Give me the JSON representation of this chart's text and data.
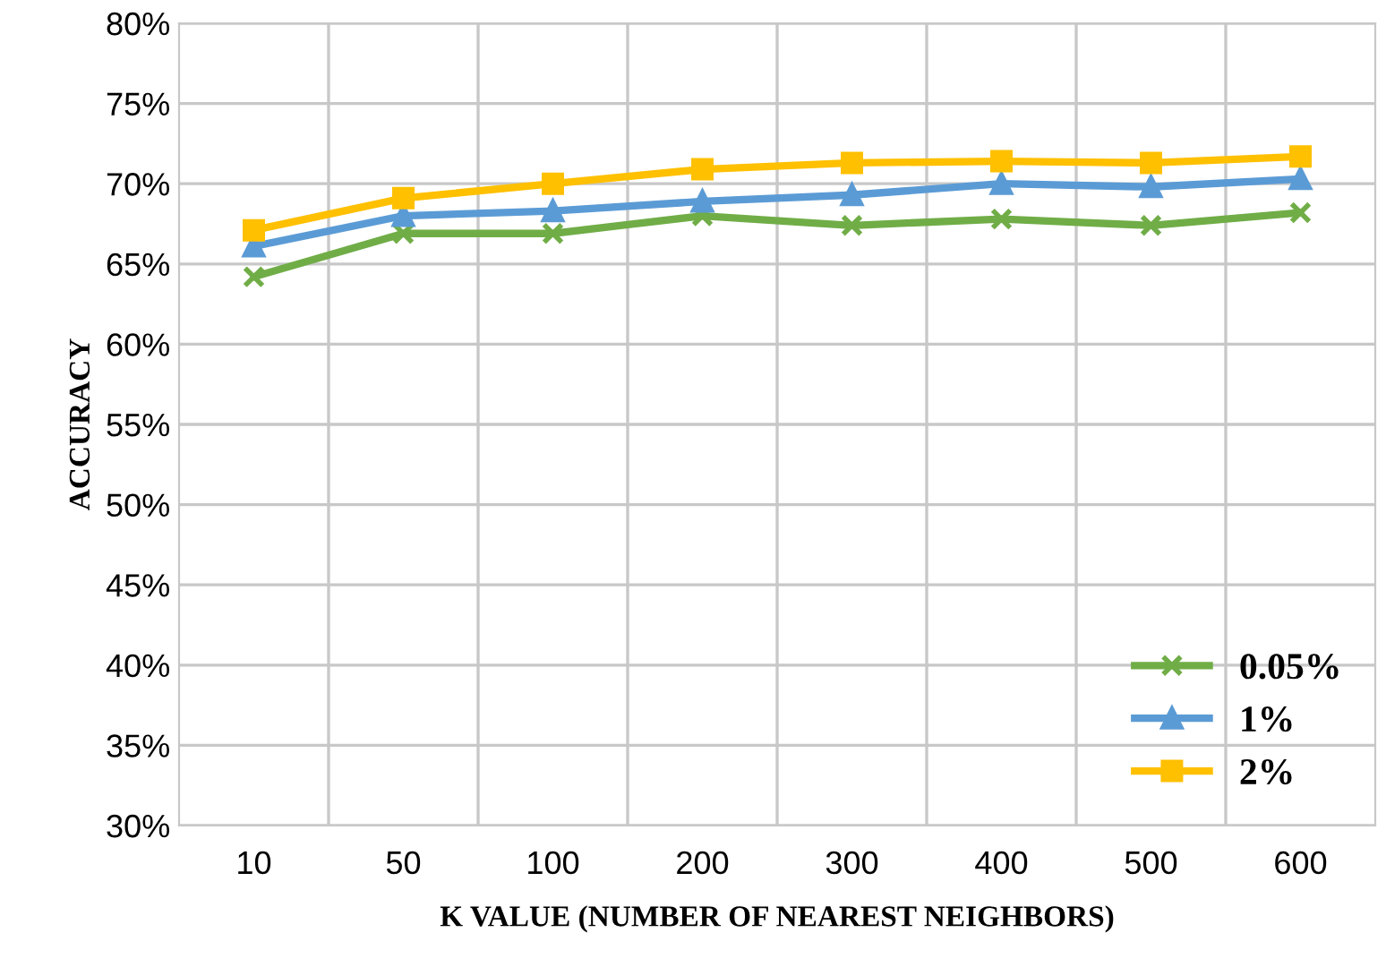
{
  "chart_data": {
    "type": "line",
    "xlabel": "K VALUE (NUMBER OF NEAREST NEIGHBORS)",
    "ylabel": "ACCURACY",
    "categories": [
      "10",
      "50",
      "100",
      "200",
      "300",
      "400",
      "500",
      "600"
    ],
    "series": [
      {
        "name": "0.05%",
        "color": "#70ad47",
        "marker": "cross",
        "values": [
          64.2,
          66.9,
          66.9,
          68.0,
          67.4,
          67.8,
          67.4,
          68.2
        ]
      },
      {
        "name": "1%",
        "color": "#5b9bd5",
        "marker": "triangle",
        "values": [
          66.1,
          68.0,
          68.3,
          68.9,
          69.3,
          70.0,
          69.8,
          70.3
        ]
      },
      {
        "name": "2%",
        "color": "#ffc000",
        "marker": "square",
        "values": [
          67.1,
          69.1,
          70.0,
          70.9,
          71.3,
          71.4,
          71.3,
          71.7
        ]
      }
    ],
    "ylim": [
      30,
      80
    ],
    "yticks": [
      {
        "value": 30,
        "label": "30%"
      },
      {
        "value": 35,
        "label": "35%"
      },
      {
        "value": 40,
        "label": "40%"
      },
      {
        "value": 45,
        "label": "45%"
      },
      {
        "value": 50,
        "label": "50%"
      },
      {
        "value": 55,
        "label": "55%"
      },
      {
        "value": 60,
        "label": "60%"
      },
      {
        "value": 65,
        "label": "65%"
      },
      {
        "value": 70,
        "label": "70%"
      },
      {
        "value": 75,
        "label": "75%"
      },
      {
        "value": 80,
        "label": "80%"
      }
    ],
    "grid": true,
    "legend": "bottom right"
  }
}
